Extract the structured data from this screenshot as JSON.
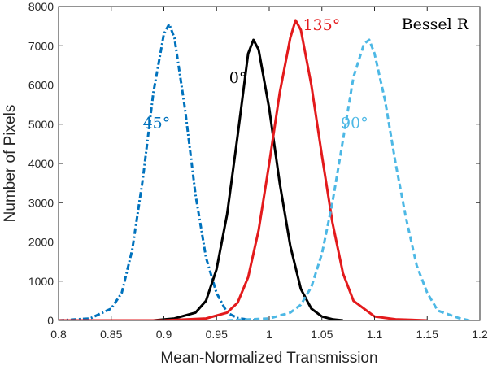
{
  "chart_data": {
    "type": "line",
    "title": "",
    "panel_label": "Bessel R",
    "xlabel": "Mean-Normalized Transmission",
    "ylabel": "Number of Pixels",
    "xlim": [
      0.8,
      1.2
    ],
    "ylim": [
      0,
      8000
    ],
    "xticks": [
      0.8,
      0.85,
      0.9,
      0.95,
      1,
      1.05,
      1.1,
      1.15,
      1.2
    ],
    "xtick_labels": [
      "0.8",
      "0.85",
      "0.9",
      "0.95",
      "1",
      "1.05",
      "1.1",
      "1.15",
      "1.2"
    ],
    "yticks": [
      0,
      1000,
      2000,
      3000,
      4000,
      5000,
      6000,
      7000,
      8000
    ],
    "ytick_labels": [
      "0",
      "1000",
      "2000",
      "3000",
      "4000",
      "5000",
      "6000",
      "7000",
      "8000"
    ],
    "grid": false,
    "series": [
      {
        "name": "45°",
        "color": "#0072bd",
        "style": "dashdot",
        "x": [
          0.8,
          0.83,
          0.85,
          0.86,
          0.87,
          0.88,
          0.89,
          0.9,
          0.905,
          0.91,
          0.92,
          0.93,
          0.94,
          0.95,
          0.96,
          0.97,
          0.98,
          0.99
        ],
        "values": [
          0,
          50,
          300,
          700,
          1800,
          3600,
          5800,
          7300,
          7550,
          7200,
          5400,
          3200,
          1600,
          700,
          200,
          60,
          20,
          0
        ]
      },
      {
        "name": "0°",
        "color": "#000000",
        "style": "solid",
        "x": [
          0.89,
          0.91,
          0.93,
          0.94,
          0.95,
          0.96,
          0.97,
          0.98,
          0.985,
          0.99,
          1.0,
          1.01,
          1.02,
          1.03,
          1.04,
          1.05,
          1.06,
          1.07
        ],
        "values": [
          0,
          50,
          200,
          500,
          1300,
          2700,
          4700,
          6800,
          7150,
          6900,
          5400,
          3500,
          1900,
          800,
          300,
          100,
          30,
          0
        ]
      },
      {
        "name": "135°",
        "color": "#e31a1c",
        "style": "solid",
        "x": [
          0.8,
          0.9,
          0.94,
          0.96,
          0.97,
          0.98,
          0.99,
          1.0,
          1.01,
          1.02,
          1.025,
          1.03,
          1.04,
          1.05,
          1.06,
          1.07,
          1.08,
          1.1,
          1.12,
          1.15
        ],
        "values": [
          0,
          0,
          50,
          200,
          450,
          1100,
          2300,
          4000,
          5800,
          7200,
          7650,
          7400,
          6000,
          4200,
          2500,
          1200,
          500,
          100,
          30,
          0
        ]
      },
      {
        "name": "90°",
        "color": "#4db8e5",
        "style": "dashed",
        "x": [
          0.96,
          1.0,
          1.02,
          1.03,
          1.04,
          1.05,
          1.06,
          1.07,
          1.08,
          1.09,
          1.095,
          1.1,
          1.11,
          1.12,
          1.13,
          1.14,
          1.15,
          1.16,
          1.18,
          1.19
        ],
        "values": [
          0,
          50,
          200,
          400,
          850,
          1700,
          3000,
          4600,
          6200,
          7050,
          7150,
          6800,
          5600,
          4000,
          2600,
          1400,
          700,
          250,
          60,
          0
        ]
      }
    ],
    "annotations": [
      {
        "text": "45°",
        "series": 0,
        "x": 0.88,
        "y": 4900,
        "anchor": "start"
      },
      {
        "text": "0°",
        "series": 1,
        "x": 0.962,
        "y": 6050,
        "anchor": "start"
      },
      {
        "text": "135°",
        "series": 2,
        "x": 1.032,
        "y": 7400,
        "anchor": "start"
      },
      {
        "text": "90°",
        "series": 3,
        "x": 1.068,
        "y": 4900,
        "anchor": "start"
      }
    ]
  }
}
